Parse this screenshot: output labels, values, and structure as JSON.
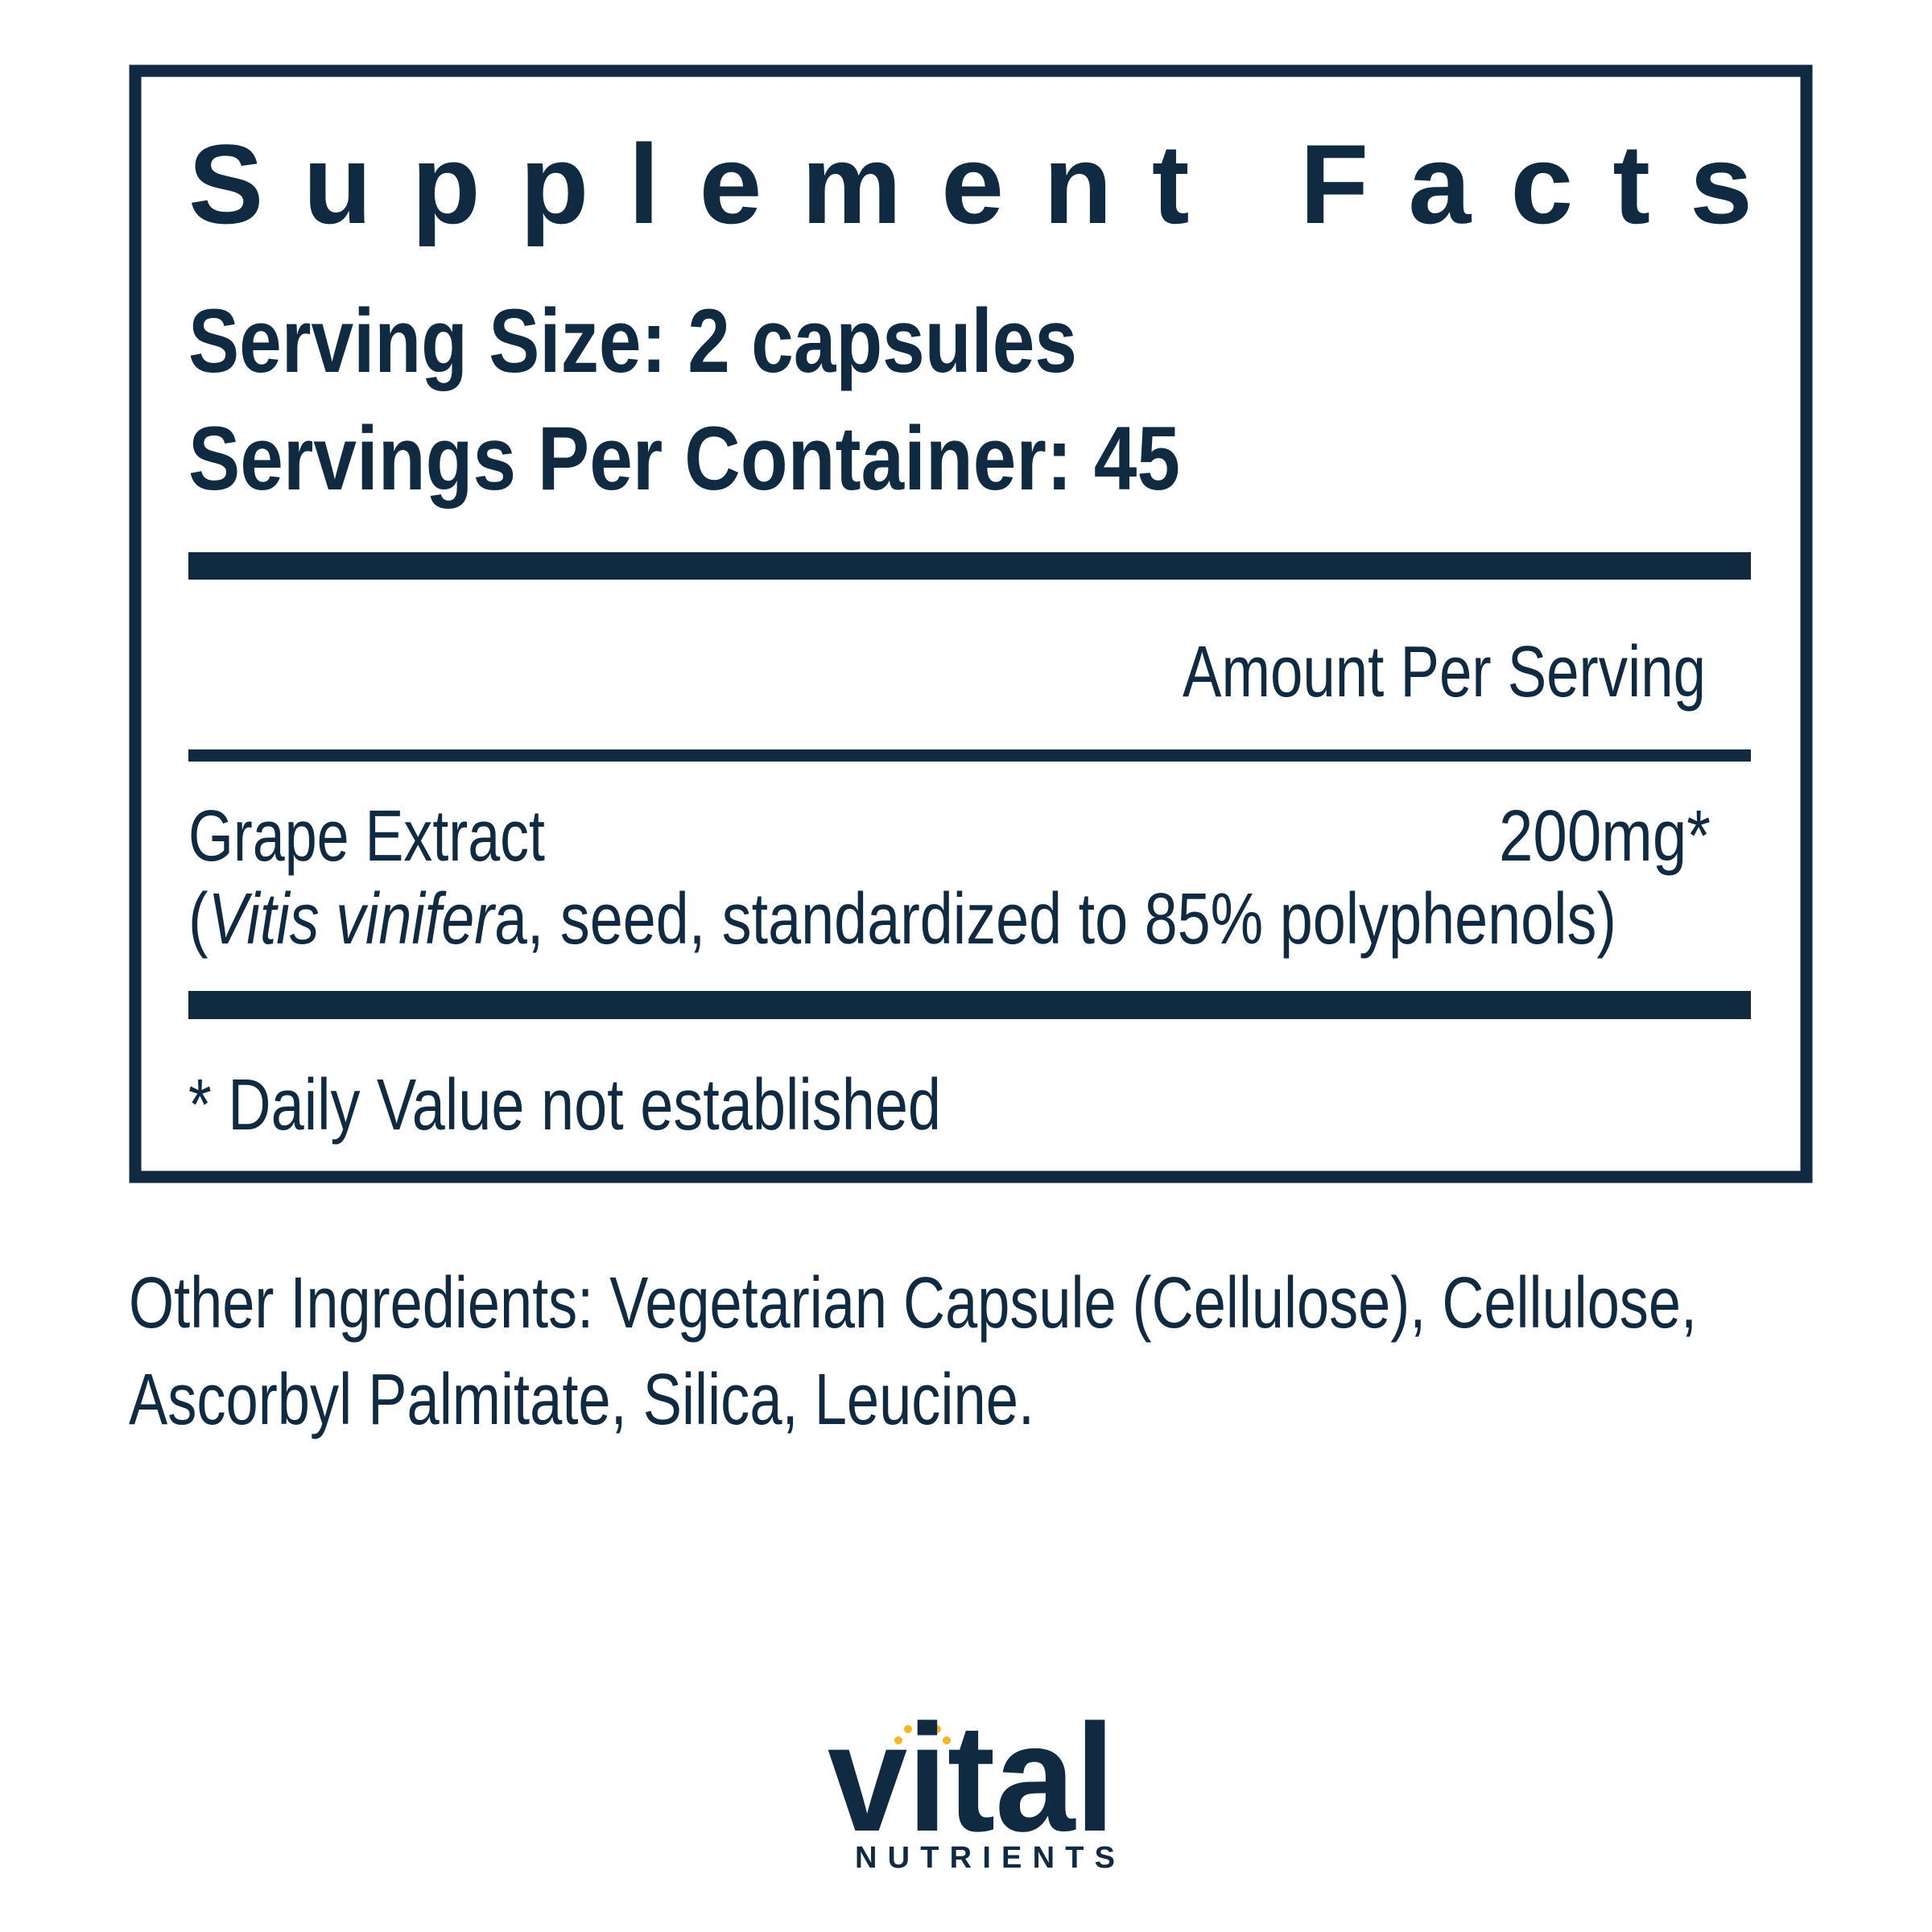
{
  "header": {
    "title": "Supplement Facts",
    "serving_size": "Serving Size: 2 capsules",
    "servings_per_container": "Servings Per Container: 45"
  },
  "table": {
    "column_header": "Amount Per Serving",
    "rows": [
      {
        "name": "Grape Extract",
        "amount": "200mg*",
        "description": [
          "(",
          "Vitis vinifer",
          "a, seed, standardized to 85% polyphenols)"
        ]
      }
    ],
    "footnote": "* Daily Value not established"
  },
  "other_ingredients": [
    "Other Ingredients: Vegetarian Capsule (Cellulose), Cellulose,",
    "Ascorbyl Palmitate, Silica, Leucine."
  ],
  "brand": {
    "name": "vital",
    "tagline": "NUTRIENTS"
  }
}
